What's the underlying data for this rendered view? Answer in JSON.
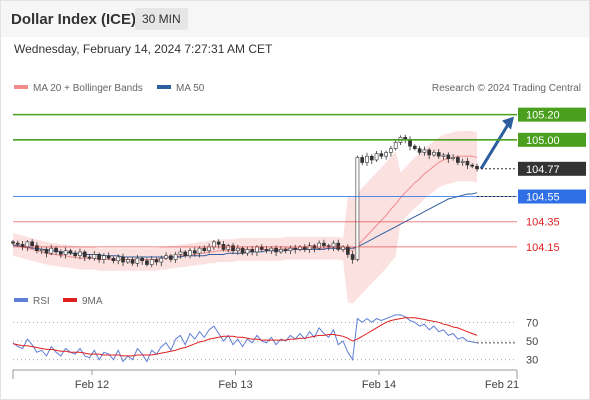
{
  "header": {
    "title": "Dollar Index (ICE)",
    "timeframe": "30 MIN"
  },
  "datetime": "Wednesday, February 14, 2024 7:27:31 AM CET",
  "legend": {
    "bollinger": {
      "label": "MA 20 + Bollinger Bands",
      "color": "#f08c8c"
    },
    "ma50": {
      "label": "MA 50",
      "color": "#2e5e9e"
    },
    "credit": "Research © 2024 Trading Central"
  },
  "rsi_legend": {
    "rsi": {
      "label": "RSI",
      "color": "#5f7fd6"
    },
    "ma9": {
      "label": "9MA",
      "color": "#e02020"
    }
  },
  "chart_data": [
    {
      "type": "candlestick",
      "ylim": [
        103.8,
        105.34
      ],
      "levels": [
        {
          "value": 105.2,
          "label": "105.20",
          "role": "resistance",
          "color": "#4aa01e"
        },
        {
          "value": 105.0,
          "label": "105.00",
          "role": "resistance",
          "color": "#4aa01e"
        },
        {
          "value": 104.77,
          "label": "104.77",
          "role": "last",
          "color": "#333333"
        },
        {
          "value": 104.55,
          "label": "104.55",
          "role": "pivot",
          "color": "#2e6fe6"
        },
        {
          "value": 104.35,
          "label": "104.35",
          "role": "support",
          "color": "#e02020"
        },
        {
          "value": 104.15,
          "label": "104.15",
          "role": "support",
          "color": "#e02020"
        }
      ],
      "x_ticks": [
        "Feb 12",
        "Feb 13",
        "Feb 14",
        "Feb 21"
      ],
      "closes": [
        104.18,
        104.17,
        104.15,
        104.19,
        104.16,
        104.12,
        104.13,
        104.1,
        104.14,
        104.11,
        104.09,
        104.12,
        104.1,
        104.08,
        104.11,
        104.07,
        104.06,
        104.09,
        104.05,
        104.08,
        104.06,
        104.04,
        104.07,
        104.03,
        104.05,
        104.02,
        104.06,
        104.04,
        104.01,
        104.05,
        104.03,
        104.06,
        104.08,
        104.05,
        104.09,
        104.11,
        104.08,
        104.12,
        104.1,
        104.14,
        104.12,
        104.15,
        104.19,
        104.17,
        104.13,
        104.16,
        104.12,
        104.14,
        104.1,
        104.13,
        104.11,
        104.15,
        104.13,
        104.12,
        104.14,
        104.11,
        104.13,
        104.12,
        104.14,
        104.13,
        104.15,
        104.13,
        104.16,
        104.14,
        104.18,
        104.16,
        104.15,
        104.18,
        104.13,
        104.15,
        104.09,
        104.05,
        104.86,
        104.82,
        104.87,
        104.84,
        104.89,
        104.87,
        104.9,
        104.93,
        104.98,
        105.02,
        105.0,
        104.95,
        104.93,
        104.9,
        104.92,
        104.88,
        104.9,
        104.87,
        104.88,
        104.85,
        104.86,
        104.82,
        104.83,
        104.8,
        104.79,
        104.77
      ],
      "ma20": [
        104.17,
        104.16,
        104.15,
        104.14,
        104.13,
        104.12,
        104.11,
        104.1,
        104.09,
        104.09,
        104.08,
        104.08,
        104.07,
        104.07,
        104.06,
        104.06,
        104.06,
        104.06,
        104.05,
        104.05,
        104.05,
        104.05,
        104.05,
        104.05,
        104.05,
        104.05,
        104.05,
        104.05,
        104.05,
        104.05,
        104.05,
        104.06,
        104.06,
        104.07,
        104.07,
        104.08,
        104.08,
        104.09,
        104.09,
        104.1,
        104.1,
        104.11,
        104.11,
        104.12,
        104.12,
        104.12,
        104.12,
        104.13,
        104.13,
        104.13,
        104.13,
        104.13,
        104.13,
        104.13,
        104.13,
        104.13,
        104.13,
        104.14,
        104.14,
        104.14,
        104.14,
        104.14,
        104.14,
        104.14,
        104.14,
        104.14,
        104.14,
        104.14,
        104.14,
        104.13,
        104.13,
        104.12,
        104.16,
        104.2,
        104.24,
        104.28,
        104.32,
        104.36,
        104.4,
        104.45,
        104.49,
        104.54,
        104.58,
        104.62,
        104.66,
        104.69,
        104.73,
        104.76,
        104.79,
        104.82,
        104.84,
        104.85,
        104.86,
        104.87,
        104.87,
        104.87,
        104.87,
        104.86
      ],
      "ma50": [
        104.16,
        104.16,
        104.15,
        104.15,
        104.14,
        104.14,
        104.13,
        104.13,
        104.12,
        104.12,
        104.11,
        104.11,
        104.1,
        104.1,
        104.1,
        104.09,
        104.09,
        104.09,
        104.09,
        104.08,
        104.08,
        104.08,
        104.08,
        104.07,
        104.07,
        104.07,
        104.07,
        104.07,
        104.07,
        104.07,
        104.07,
        104.07,
        104.07,
        104.07,
        104.07,
        104.07,
        104.08,
        104.08,
        104.08,
        104.08,
        104.08,
        104.09,
        104.09,
        104.09,
        104.09,
        104.1,
        104.1,
        104.1,
        104.1,
        104.11,
        104.11,
        104.11,
        104.11,
        104.12,
        104.12,
        104.12,
        104.12,
        104.12,
        104.13,
        104.13,
        104.13,
        104.13,
        104.13,
        104.13,
        104.13,
        104.13,
        104.14,
        104.14,
        104.14,
        104.14,
        104.14,
        104.14,
        104.15,
        104.17,
        104.19,
        104.21,
        104.23,
        104.25,
        104.27,
        104.29,
        104.31,
        104.33,
        104.35,
        104.37,
        104.39,
        104.41,
        104.43,
        104.45,
        104.47,
        104.49,
        104.51,
        104.53,
        104.54,
        104.55,
        104.56,
        104.57,
        104.57,
        104.58
      ]
    },
    {
      "type": "line",
      "ylim": [
        20,
        80
      ],
      "y_ticks": [
        70,
        50,
        30
      ],
      "series": [
        {
          "name": "RSI",
          "values": [
            48,
            44,
            42,
            52,
            46,
            38,
            40,
            34,
            44,
            38,
            34,
            42,
            38,
            36,
            42,
            34,
            32,
            40,
            30,
            38,
            36,
            30,
            40,
            28,
            34,
            30,
            42,
            36,
            28,
            40,
            36,
            44,
            48,
            40,
            52,
            56,
            46,
            58,
            52,
            60,
            54,
            62,
            66,
            58,
            50,
            56,
            46,
            52,
            44,
            52,
            48,
            56,
            50,
            48,
            54,
            46,
            52,
            50,
            56,
            52,
            58,
            52,
            60,
            54,
            64,
            58,
            54,
            62,
            46,
            50,
            38,
            30,
            74,
            70,
            74,
            70,
            74,
            72,
            74,
            76,
            78,
            78,
            76,
            72,
            70,
            66,
            68,
            62,
            66,
            60,
            62,
            56,
            58,
            52,
            54,
            50,
            49,
            48
          ]
        },
        {
          "name": "9MA",
          "values": [
            47,
            46,
            45,
            45,
            44,
            43,
            42,
            41,
            41,
            40,
            39,
            39,
            38,
            38,
            38,
            37,
            36,
            36,
            36,
            35,
            35,
            35,
            35,
            34,
            34,
            34,
            35,
            35,
            35,
            35,
            36,
            37,
            38,
            39,
            40,
            42,
            43,
            45,
            47,
            49,
            50,
            52,
            53,
            54,
            55,
            55,
            55,
            54,
            54,
            53,
            52,
            52,
            51,
            51,
            51,
            51,
            51,
            51,
            52,
            52,
            53,
            53,
            54,
            55,
            56,
            56,
            57,
            57,
            56,
            55,
            53,
            50,
            52,
            55,
            58,
            61,
            64,
            67,
            70,
            72,
            73,
            74,
            75,
            75,
            75,
            74,
            73,
            72,
            71,
            70,
            68,
            67,
            65,
            64,
            62,
            60,
            58,
            56
          ]
        }
      ]
    }
  ]
}
